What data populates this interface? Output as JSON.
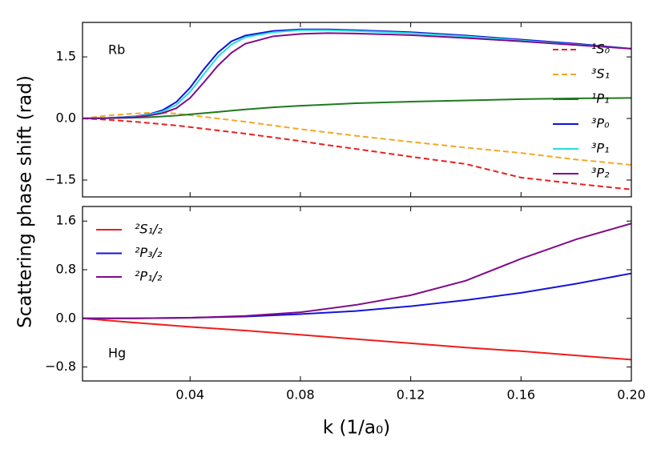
{
  "ylabel": "Scattering phase shift (rad)",
  "xlabel": "k (1/a₀)",
  "chart_data": [
    {
      "type": "line",
      "label": "Rb",
      "x": [
        0.001,
        0.01,
        0.02,
        0.025,
        0.03,
        0.035,
        0.04,
        0.045,
        0.05,
        0.055,
        0.06,
        0.07,
        0.08,
        0.09,
        0.1,
        0.12,
        0.14,
        0.16,
        0.18,
        0.2
      ],
      "series": [
        {
          "name": "¹S₀",
          "color": "#e8201e",
          "dash": true,
          "values": [
            0,
            -0.03,
            -0.08,
            -0.11,
            -0.14,
            -0.17,
            -0.21,
            -0.25,
            -0.29,
            -0.33,
            -0.37,
            -0.46,
            -0.55,
            -0.65,
            -0.74,
            -0.93,
            -1.11,
            -1.44,
            -1.59,
            -1.73
          ]
        },
        {
          "name": "³S₁",
          "color": "#f5a623",
          "dash": true,
          "values": [
            0,
            0.07,
            0.12,
            0.14,
            0.14,
            0.12,
            0.08,
            0.04,
            0,
            -0.04,
            -0.08,
            -0.17,
            -0.26,
            -0.34,
            -0.42,
            -0.57,
            -0.71,
            -0.84,
            -1.0,
            -1.13
          ]
        },
        {
          "name": "¹P₁",
          "color": "#1e7a1e",
          "dash": false,
          "values": [
            0,
            0.005,
            0.02,
            0.03,
            0.05,
            0.07,
            0.1,
            0.13,
            0.16,
            0.19,
            0.22,
            0.27,
            0.31,
            0.34,
            0.37,
            0.41,
            0.44,
            0.47,
            0.49,
            0.5
          ]
        },
        {
          "name": "³P₀",
          "color": "#1010d8",
          "dash": false,
          "values": [
            0,
            0.01,
            0.05,
            0.1,
            0.2,
            0.4,
            0.75,
            1.2,
            1.6,
            1.88,
            2.02,
            2.13,
            2.17,
            2.17,
            2.15,
            2.1,
            2.02,
            1.92,
            1.82,
            1.7
          ]
        },
        {
          "name": "³P₁",
          "color": "#22e0e0",
          "dash": false,
          "values": [
            0,
            0.01,
            0.04,
            0.09,
            0.17,
            0.33,
            0.65,
            1.08,
            1.5,
            1.8,
            1.98,
            2.1,
            2.15,
            2.15,
            2.13,
            2.08,
            2.0,
            1.9,
            1.8,
            1.7
          ]
        },
        {
          "name": "³P₂",
          "color": "#800a8a",
          "dash": false,
          "values": [
            0,
            0.01,
            0.03,
            0.07,
            0.13,
            0.25,
            0.5,
            0.88,
            1.28,
            1.6,
            1.82,
            2.0,
            2.06,
            2.08,
            2.07,
            2.03,
            1.96,
            1.88,
            1.79,
            1.7
          ]
        }
      ],
      "xlim": [
        0.001,
        0.2
      ],
      "ylim": [
        -1.91,
        2.34
      ],
      "xticks": [
        0.04,
        0.08,
        0.12,
        0.16,
        0.2
      ],
      "yticks": [
        {
          "value": -1.5,
          "label": "−1.5"
        },
        {
          "value": 0,
          "label": "0.0"
        },
        1.5
      ],
      "legend": "right"
    },
    {
      "type": "line",
      "label": "Hg",
      "x": [
        0.001,
        0.02,
        0.04,
        0.06,
        0.08,
        0.1,
        0.12,
        0.14,
        0.16,
        0.18,
        0.2
      ],
      "series": [
        {
          "name": "²S₁/₂",
          "color": "#ee1c1c",
          "dash": false,
          "values": [
            0,
            -0.07,
            -0.14,
            -0.2,
            -0.27,
            -0.34,
            -0.41,
            -0.48,
            -0.54,
            -0.61,
            -0.68
          ]
        },
        {
          "name": "²P₃/₂",
          "color": "#1414d8",
          "dash": false,
          "values": [
            0,
            0,
            0.01,
            0.03,
            0.07,
            0.12,
            0.2,
            0.3,
            0.42,
            0.57,
            0.74
          ]
        },
        {
          "name": "²P₁/₂",
          "color": "#800a8a",
          "dash": false,
          "values": [
            0,
            0,
            0.01,
            0.04,
            0.1,
            0.22,
            0.38,
            0.62,
            0.98,
            1.3,
            1.56
          ]
        }
      ],
      "xlim": [
        0.001,
        0.2
      ],
      "ylim": [
        -1.03,
        1.84
      ],
      "xticks": [
        0.04,
        0.08,
        0.12,
        0.16,
        {
          "value": 0.2,
          "label": "0.20"
        }
      ],
      "yticks": [
        {
          "value": -0.8,
          "label": "−0.8"
        },
        {
          "value": 0,
          "label": "0.0"
        },
        0.8,
        1.6
      ],
      "legend": "upper left"
    }
  ]
}
